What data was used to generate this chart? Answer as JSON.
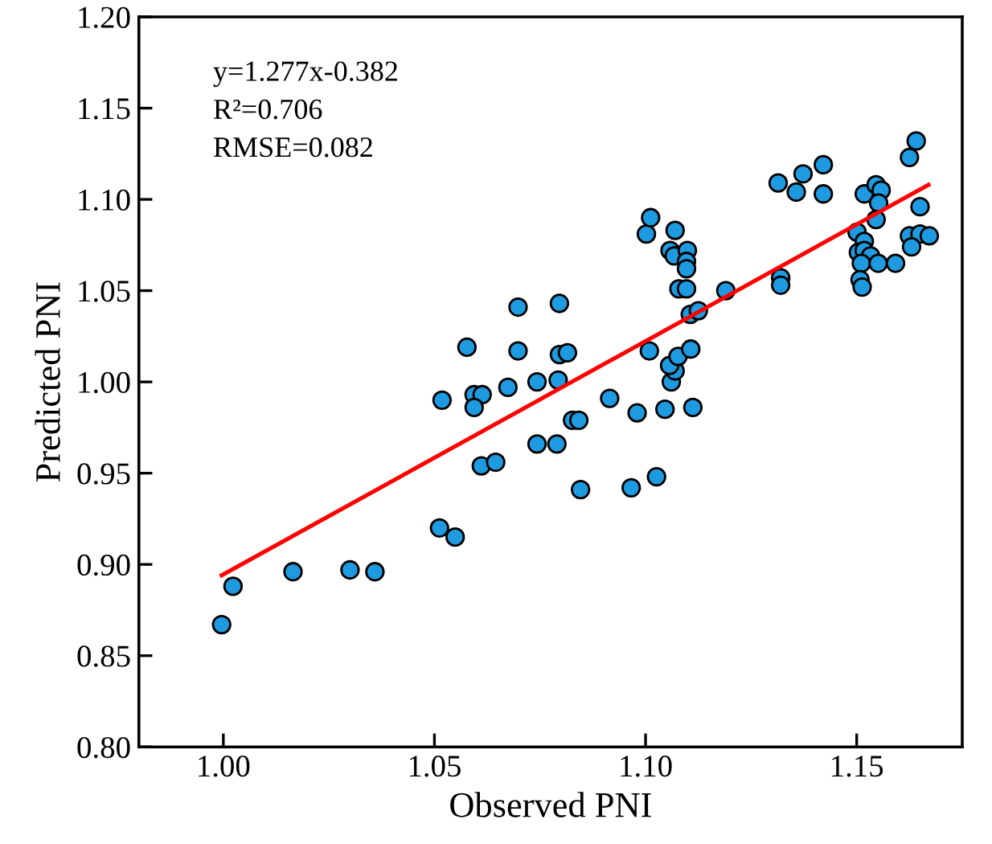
{
  "chart_data": {
    "type": "scatter",
    "xlabel": "Observed PNI",
    "ylabel": "Predicted PNI",
    "annotations": [
      "y=1.277x-0.382",
      "R²=0.706",
      "RMSE=0.082"
    ],
    "xlim": [
      0.98,
      1.175
    ],
    "ylim": [
      0.8,
      1.2
    ],
    "xticks": [
      {
        "value": 1.0,
        "label": "1.00"
      },
      {
        "value": 1.05,
        "label": "1.05"
      },
      {
        "value": 1.1,
        "label": "1.10"
      },
      {
        "value": 1.15,
        "label": "1.15"
      }
    ],
    "yticks": [
      {
        "value": 0.8,
        "label": "0.80"
      },
      {
        "value": 0.85,
        "label": "0.85"
      },
      {
        "value": 0.9,
        "label": "0.90"
      },
      {
        "value": 0.95,
        "label": "0.95"
      },
      {
        "value": 1.0,
        "label": "1.00"
      },
      {
        "value": 1.05,
        "label": "1.05"
      },
      {
        "value": 1.1,
        "label": "1.10"
      },
      {
        "value": 1.15,
        "label": "1.15"
      },
      {
        "value": 1.2,
        "label": "1.20"
      }
    ],
    "grid": false,
    "legend": false,
    "marker": "circle",
    "series": [
      {
        "color": "#1e9be0",
        "x": [
          0.9996,
          1.0023,
          1.0165,
          1.03,
          1.0359,
          1.0512,
          1.0549,
          1.0518,
          1.0594,
          1.0613,
          1.0594,
          1.0674,
          1.0743,
          1.0611,
          1.0645,
          1.0743,
          1.0577,
          1.0698,
          1.0698,
          1.0796,
          1.0796,
          1.0815,
          1.0793,
          1.0915,
          1.098,
          1.1046,
          1.1112,
          1.0827,
          1.0842,
          1.079,
          1.1009,
          1.1061,
          1.107,
          1.1057,
          1.1077,
          1.1107,
          1.1106,
          1.1125,
          1.119,
          1.1002,
          1.1012,
          1.107,
          1.1058,
          1.1068,
          1.1099,
          1.1097,
          1.1097,
          1.1079,
          1.1097,
          1.132,
          1.132,
          1.1314,
          1.1357,
          1.1373,
          1.1421,
          1.1421,
          1.1501,
          1.1518,
          1.1504,
          1.1518,
          1.1533,
          1.1511,
          1.1508,
          1.1513,
          1.1551,
          1.1592,
          1.1518,
          1.1546,
          1.1558,
          1.1552,
          1.1546,
          1.1625,
          1.1641,
          1.165,
          1.1625,
          1.165,
          1.1672,
          1.163,
          1.0846,
          1.0966,
          1.1026
        ],
        "values": [
          0.867,
          0.888,
          0.896,
          0.897,
          0.896,
          0.92,
          0.915,
          0.99,
          0.993,
          0.993,
          0.986,
          0.997,
          1.0,
          0.954,
          0.956,
          0.966,
          1.019,
          1.041,
          1.017,
          1.043,
          1.015,
          1.016,
          1.001,
          0.991,
          0.983,
          0.985,
          0.986,
          0.979,
          0.979,
          0.966,
          1.017,
          1.0,
          1.006,
          1.009,
          1.014,
          1.018,
          1.037,
          1.039,
          1.05,
          1.081,
          1.09,
          1.083,
          1.072,
          1.069,
          1.072,
          1.066,
          1.062,
          1.051,
          1.051,
          1.057,
          1.053,
          1.109,
          1.104,
          1.114,
          1.119,
          1.103,
          1.082,
          1.077,
          1.071,
          1.072,
          1.069,
          1.065,
          1.056,
          1.052,
          1.065,
          1.065,
          1.103,
          1.108,
          1.105,
          1.098,
          1.089,
          1.123,
          1.132,
          1.096,
          1.08,
          1.081,
          1.08,
          1.074,
          0.941,
          0.942,
          0.948
        ]
      },
      {
        "type": "line",
        "color": "#ff0000",
        "marker": "none",
        "line_style": "solid",
        "x": [
          0.9996,
          1.167
        ],
        "values": [
          0.894,
          1.108
        ]
      }
    ]
  }
}
